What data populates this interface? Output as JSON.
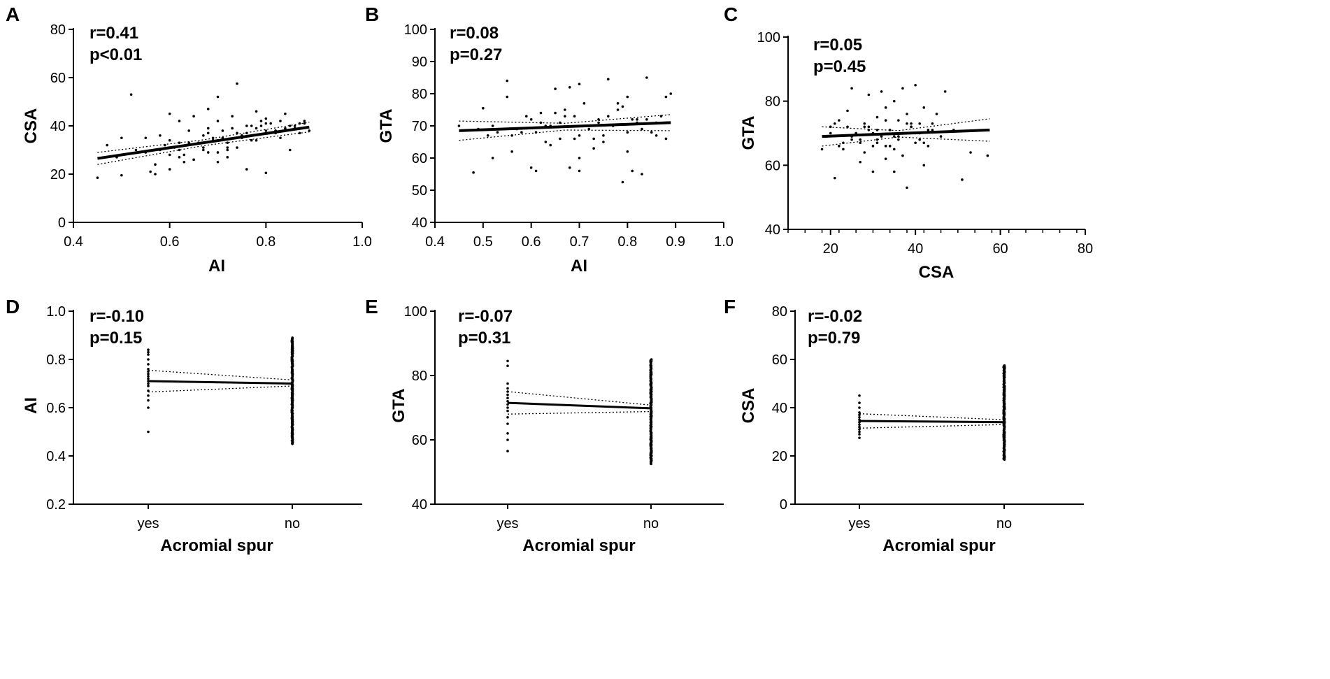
{
  "figure": {
    "description": ""
  },
  "chart_data": [
    {
      "panel": "A",
      "type": "scatter",
      "stats": {
        "r": "r=0.41",
        "p": "p<0.01"
      },
      "xlabel": "AI",
      "ylabel": "CSA",
      "xlim": [
        0.4,
        1.0
      ],
      "ylim": [
        0,
        80
      ],
      "xticks": [
        0.4,
        0.6,
        0.8,
        1.0
      ],
      "xtick_labels": [
        "0.4",
        "0.6",
        "0.8",
        "1.0"
      ],
      "yticks": [
        0,
        20,
        40,
        60,
        80
      ],
      "ytick_labels": [
        "0",
        "20",
        "40",
        "60",
        "80"
      ],
      "fit": {
        "x": [
          0.45,
          0.89
        ],
        "y": [
          26.5,
          39.5
        ]
      },
      "ci_upper": {
        "x": [
          0.45,
          0.67,
          0.89
        ],
        "y": [
          29.0,
          34.2,
          41.5
        ]
      },
      "ci_lower": {
        "x": [
          0.45,
          0.67,
          0.89
        ],
        "y": [
          24.0,
          31.8,
          37.5
        ]
      },
      "points": {
        "x": [
          0.45,
          0.47,
          0.5,
          0.5,
          0.52,
          0.55,
          0.56,
          0.57,
          0.58,
          0.6,
          0.6,
          0.6,
          0.62,
          0.62,
          0.63,
          0.64,
          0.65,
          0.65,
          0.66,
          0.67,
          0.67,
          0.68,
          0.68,
          0.69,
          0.7,
          0.7,
          0.7,
          0.71,
          0.72,
          0.72,
          0.73,
          0.74,
          0.74,
          0.75,
          0.76,
          0.76,
          0.77,
          0.78,
          0.78,
          0.79,
          0.8,
          0.8,
          0.81,
          0.82,
          0.83,
          0.84,
          0.85,
          0.86,
          0.87,
          0.88,
          0.89,
          0.55,
          0.58,
          0.61,
          0.64,
          0.68,
          0.7,
          0.73,
          0.76,
          0.8,
          0.83,
          0.86,
          0.57,
          0.62,
          0.66,
          0.69,
          0.72,
          0.75,
          0.78,
          0.82,
          0.85,
          0.88,
          0.49,
          0.53,
          0.59,
          0.63,
          0.67,
          0.71,
          0.74,
          0.79,
          0.84,
          0.87,
          0.6,
          0.65,
          0.7,
          0.75,
          0.8,
          0.62,
          0.68,
          0.72,
          0.77,
          0.82
        ],
        "y": [
          18.5,
          32,
          19.5,
          35,
          53,
          29,
          21,
          20,
          36,
          34,
          45,
          28,
          30,
          42,
          25,
          38,
          26,
          44,
          33,
          36,
          30,
          47,
          29,
          35,
          52,
          25,
          42,
          38,
          33,
          27,
          44,
          57.5,
          31,
          36,
          22,
          40,
          40,
          46,
          34,
          42,
          20.5,
          38,
          41,
          37,
          35,
          45,
          30,
          40,
          37,
          41,
          38,
          35,
          30,
          31,
          33,
          37,
          34,
          39,
          37,
          41,
          42,
          39,
          24,
          27,
          33,
          34,
          31,
          35,
          39,
          38,
          40,
          42,
          27,
          30,
          32,
          28,
          31,
          35,
          37,
          40,
          39,
          41,
          22,
          26,
          29,
          36,
          43,
          33,
          39,
          30,
          34,
          38
        ]
      }
    },
    {
      "panel": "B",
      "type": "scatter",
      "stats": {
        "r": "r=0.08",
        "p": "p=0.27"
      },
      "xlabel": "AI",
      "ylabel": "GTA",
      "xlim": [
        0.4,
        1.0
      ],
      "ylim": [
        40,
        100
      ],
      "xticks": [
        0.4,
        0.5,
        0.6,
        0.7,
        0.8,
        0.9,
        1.0
      ],
      "xtick_labels": [
        "0.4",
        "0.5",
        "0.6",
        "0.7",
        "0.8",
        "0.9",
        "1.0"
      ],
      "yticks": [
        40,
        50,
        60,
        70,
        80,
        90,
        100
      ],
      "ytick_labels": [
        "40",
        "50",
        "60",
        "70",
        "80",
        "90",
        "100"
      ],
      "fit": {
        "x": [
          0.45,
          0.89
        ],
        "y": [
          68.5,
          71.0
        ]
      },
      "ci_upper": {
        "x": [
          0.45,
          0.67,
          0.89
        ],
        "y": [
          71.5,
          70.8,
          73.5
        ]
      },
      "ci_lower": {
        "x": [
          0.45,
          0.67,
          0.89
        ],
        "y": [
          65.5,
          68.7,
          68.5
        ]
      },
      "points": {
        "x": [
          0.45,
          0.48,
          0.49,
          0.5,
          0.52,
          0.55,
          0.55,
          0.56,
          0.58,
          0.6,
          0.6,
          0.61,
          0.62,
          0.63,
          0.64,
          0.65,
          0.66,
          0.67,
          0.68,
          0.68,
          0.7,
          0.7,
          0.7,
          0.71,
          0.72,
          0.73,
          0.74,
          0.75,
          0.76,
          0.77,
          0.78,
          0.79,
          0.8,
          0.8,
          0.81,
          0.82,
          0.83,
          0.84,
          0.85,
          0.86,
          0.87,
          0.88,
          0.89,
          0.53,
          0.57,
          0.62,
          0.66,
          0.69,
          0.72,
          0.76,
          0.8,
          0.84,
          0.88,
          0.51,
          0.59,
          0.64,
          0.71,
          0.78,
          0.86,
          0.56,
          0.63,
          0.69,
          0.75,
          0.82,
          0.65,
          0.7,
          0.74,
          0.79,
          0.83,
          0.88,
          0.52,
          0.61,
          0.67,
          0.73,
          0.81
        ],
        "y": [
          70,
          55.5,
          69,
          75.5,
          60,
          84,
          79,
          67,
          68,
          57,
          72,
          56,
          71,
          65,
          70,
          81.5,
          66,
          73,
          82,
          57,
          83,
          60,
          56,
          77,
          69,
          63,
          72,
          67,
          84.5,
          70,
          75,
          52.5,
          62,
          79,
          56,
          72,
          55,
          85,
          68,
          67,
          73,
          79,
          80,
          68,
          69,
          74,
          71,
          66,
          70,
          73,
          68,
          72,
          66,
          67,
          73,
          64,
          70,
          77,
          71,
          62,
          70,
          73,
          65,
          71,
          74,
          67,
          71,
          76,
          69,
          71,
          70,
          68,
          75,
          66,
          72
        ]
      }
    },
    {
      "panel": "C",
      "type": "scatter",
      "stats": {
        "r": "r=0.05",
        "p": "p=0.45"
      },
      "xlabel": "CSA",
      "ylabel": "GTA",
      "xlim": [
        10,
        80
      ],
      "ylim": [
        40,
        100
      ],
      "xticks": [
        20,
        40,
        60,
        80
      ],
      "xtick_labels": [
        "20",
        "40",
        "60",
        "80"
      ],
      "yticks": [
        40,
        60,
        80,
        100
      ],
      "ytick_labels": [
        "40",
        "60",
        "80",
        "100"
      ],
      "fit": {
        "x": [
          18,
          57.5
        ],
        "y": [
          69.0,
          71.0
        ]
      },
      "ci_upper": {
        "x": [
          18,
          36,
          57.5
        ],
        "y": [
          72.0,
          70.8,
          74.5
        ]
      },
      "ci_lower": {
        "x": [
          18,
          36,
          57.5
        ],
        "y": [
          66.0,
          68.8,
          67.5
        ]
      },
      "points": {
        "x": [
          18,
          19,
          20,
          21,
          22,
          23,
          24,
          25,
          25,
          26,
          27,
          28,
          28,
          29,
          30,
          30,
          31,
          31,
          32,
          33,
          33,
          34,
          34,
          35,
          35,
          36,
          36,
          37,
          37,
          38,
          38,
          39,
          40,
          40,
          41,
          42,
          42,
          43,
          44,
          45,
          47,
          49,
          51,
          53,
          57,
          20,
          22,
          24,
          27,
          29,
          31,
          33,
          35,
          37,
          39,
          41,
          43,
          46,
          21,
          23,
          26,
          28,
          30,
          32,
          34,
          36,
          38,
          40,
          42,
          44,
          25,
          29,
          33,
          37,
          41,
          27,
          31,
          35,
          39
        ],
        "y": [
          65,
          69,
          72,
          56,
          74,
          65,
          77,
          84,
          68,
          70,
          61,
          73,
          64,
          82,
          70,
          58,
          75,
          67,
          83,
          62,
          78,
          71,
          66,
          80,
          58,
          74,
          69,
          84,
          63,
          76,
          53,
          72,
          85,
          67,
          70,
          60,
          78,
          66,
          73,
          76,
          83,
          71,
          55.5,
          64,
          63,
          70,
          66,
          72,
          67,
          71,
          68,
          74,
          65,
          70,
          73,
          68,
          71,
          69,
          73,
          67,
          70,
          72,
          66,
          69,
          71,
          68,
          73,
          70,
          67,
          71,
          69,
          72,
          66,
          70,
          73,
          68,
          71,
          69,
          72
        ]
      }
    },
    {
      "panel": "D",
      "type": "scatter",
      "stats": {
        "r": "r=-0.10",
        "p": "p=0.15"
      },
      "xlabel": "Acromial spur",
      "ylabel": "AI",
      "categories": [
        "yes",
        "no"
      ],
      "ylim": [
        0.2,
        1.0
      ],
      "yticks": [
        0.2,
        0.4,
        0.6,
        0.8,
        1.0
      ],
      "ytick_labels": [
        "0.2",
        "0.4",
        "0.6",
        "0.8",
        "1.0"
      ],
      "fit": {
        "categories": [
          "yes",
          "no"
        ],
        "y": [
          0.71,
          0.7
        ]
      },
      "ci_upper": {
        "categories": [
          "yes",
          "no"
        ],
        "y": [
          0.755,
          0.715
        ]
      },
      "ci_lower": {
        "categories": [
          "yes",
          "no"
        ],
        "y": [
          0.665,
          0.69
        ]
      },
      "groups": [
        {
          "category": "yes",
          "values": [
            0.5,
            0.6,
            0.63,
            0.65,
            0.67,
            0.69,
            0.7,
            0.71,
            0.72,
            0.73,
            0.74,
            0.75,
            0.76,
            0.78,
            0.8,
            0.82,
            0.83,
            0.84
          ]
        },
        {
          "category": "no",
          "range": [
            0.45,
            0.89
          ],
          "n": 200
        }
      ]
    },
    {
      "panel": "E",
      "type": "scatter",
      "stats": {
        "r": "r=-0.07",
        "p": "p=0.31"
      },
      "xlabel": "Acromial spur",
      "ylabel": "GTA",
      "categories": [
        "yes",
        "no"
      ],
      "ylim": [
        40,
        100
      ],
      "yticks": [
        40,
        60,
        80,
        100
      ],
      "ytick_labels": [
        "40",
        "60",
        "80",
        "100"
      ],
      "fit": {
        "categories": [
          "yes",
          "no"
        ],
        "y": [
          71.5,
          69.8
        ]
      },
      "ci_upper": {
        "categories": [
          "yes",
          "no"
        ],
        "y": [
          75.0,
          70.8
        ]
      },
      "ci_lower": {
        "categories": [
          "yes",
          "no"
        ],
        "y": [
          68.0,
          68.8
        ]
      },
      "groups": [
        {
          "category": "yes",
          "values": [
            56.5,
            60,
            62,
            65,
            67,
            69,
            70,
            71,
            72,
            73,
            74,
            75,
            76,
            77.5,
            83,
            84.5
          ]
        },
        {
          "category": "no",
          "range": [
            52.5,
            85
          ],
          "n": 200
        }
      ]
    },
    {
      "panel": "F",
      "type": "scatter",
      "stats": {
        "r": "r=-0.02",
        "p": "p=0.79"
      },
      "xlabel": "Acromial spur",
      "ylabel": "CSA",
      "categories": [
        "yes",
        "no"
      ],
      "ylim": [
        0,
        80
      ],
      "yticks": [
        0,
        20,
        40,
        60,
        80
      ],
      "ytick_labels": [
        "0",
        "20",
        "40",
        "60",
        "80"
      ],
      "fit": {
        "categories": [
          "yes",
          "no"
        ],
        "y": [
          34.5,
          34.0
        ]
      },
      "ci_upper": {
        "categories": [
          "yes",
          "no"
        ],
        "y": [
          37.5,
          35.0
        ]
      },
      "ci_lower": {
        "categories": [
          "yes",
          "no"
        ],
        "y": [
          31.5,
          33.0
        ]
      },
      "groups": [
        {
          "category": "yes",
          "values": [
            27.5,
            29,
            30,
            31,
            32,
            33,
            34,
            35,
            36,
            37,
            38,
            40,
            42,
            45
          ]
        },
        {
          "category": "no",
          "range": [
            18.5,
            57.5
          ],
          "n": 200
        }
      ]
    }
  ]
}
